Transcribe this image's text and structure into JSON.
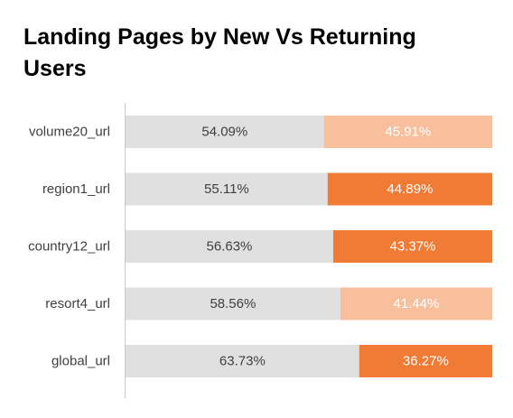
{
  "chart_data": {
    "type": "bar",
    "orientation": "horizontal",
    "stacked": "100%",
    "title": "Landing Pages by New Vs Returning Users",
    "categories": [
      "volume20_url",
      "region1_url",
      "country12_url",
      "resort4_url",
      "global_url"
    ],
    "series": [
      {
        "values": [
          54.09,
          55.11,
          56.63,
          58.56,
          63.73
        ],
        "labels": [
          "54.09%",
          "55.11%",
          "56.63%",
          "58.56%",
          "63.73%"
        ],
        "colors": [
          "#e0e0e0",
          "#e0e0e0",
          "#e0e0e0",
          "#e0e0e0",
          "#e0e0e0"
        ]
      },
      {
        "values": [
          45.91,
          44.89,
          43.37,
          41.44,
          36.27
        ],
        "labels": [
          "45.91%",
          "44.89%",
          "43.37%",
          "41.44%",
          "36.27%"
        ],
        "colors": [
          "#f7bf9c",
          "#ef7b35",
          "#ef7b35",
          "#f7bf9c",
          "#ef7b35"
        ]
      }
    ],
    "xlim": [
      0,
      100
    ],
    "grid": false,
    "legend": "none"
  },
  "colors": {
    "axis": "#c8c8c8",
    "category_text": "#404040",
    "label_on_light": "#404040",
    "label_on_color": "#ffffff"
  }
}
